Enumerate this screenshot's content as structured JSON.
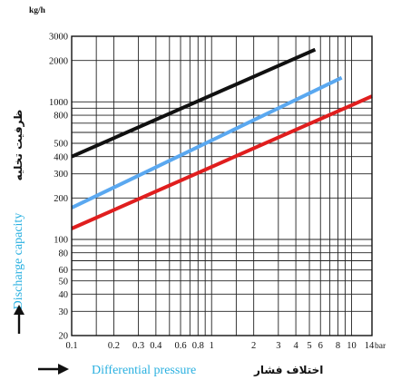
{
  "chart_data": {
    "type": "line",
    "title": "",
    "x_scale": "log",
    "y_scale": "log",
    "xlim": [
      0.1,
      14
    ],
    "ylim": [
      20,
      3000
    ],
    "x_unit": "bar",
    "y_unit": "kg/h",
    "x_tick_labels": [
      {
        "value": 0.1,
        "label": "0.1"
      },
      {
        "value": 0.2,
        "label": "0.2"
      },
      {
        "value": 0.3,
        "label": "0.3"
      },
      {
        "value": 0.4,
        "label": "0.4"
      },
      {
        "value": 0.6,
        "label": "0.6"
      },
      {
        "value": 0.8,
        "label": "0.8"
      },
      {
        "value": 1,
        "label": "1"
      },
      {
        "value": 2,
        "label": "2"
      },
      {
        "value": 3,
        "label": "3"
      },
      {
        "value": 4,
        "label": "4"
      },
      {
        "value": 5,
        "label": "5"
      },
      {
        "value": 6,
        "label": "6"
      },
      {
        "value": 8,
        "label": "8"
      },
      {
        "value": 10,
        "label": "10"
      },
      {
        "value": 14,
        "label": "14"
      }
    ],
    "y_tick_labels": [
      {
        "value": 3000,
        "label": "3000"
      },
      {
        "value": 2000,
        "label": "2000"
      },
      {
        "value": 1000,
        "label": "1000"
      },
      {
        "value": 800,
        "label": "800"
      },
      {
        "value": 500,
        "label": "500"
      },
      {
        "value": 400,
        "label": "400"
      },
      {
        "value": 300,
        "label": "300"
      },
      {
        "value": 200,
        "label": "200"
      },
      {
        "value": 100,
        "label": "100"
      },
      {
        "value": 80,
        "label": "80"
      },
      {
        "value": 60,
        "label": "60"
      },
      {
        "value": 50,
        "label": "50"
      },
      {
        "value": 40,
        "label": "40"
      },
      {
        "value": 30,
        "label": "30"
      },
      {
        "value": 20,
        "label": "20"
      }
    ],
    "x_grid": [
      0.1,
      0.15,
      0.2,
      0.3,
      0.4,
      0.5,
      0.6,
      0.7,
      0.8,
      0.9,
      1,
      1.5,
      2,
      3,
      4,
      5,
      6,
      7,
      8,
      9,
      10,
      14
    ],
    "y_grid": [
      20,
      30,
      40,
      50,
      60,
      70,
      80,
      90,
      100,
      200,
      300,
      400,
      500,
      600,
      700,
      800,
      900,
      1000,
      2000,
      3000
    ],
    "grid": true,
    "series": [
      {
        "color": "#111111",
        "x": [
          0.1,
          5.5
        ],
        "y": [
          400,
          2400
        ]
      },
      {
        "color": "#5aa8f0",
        "x": [
          0.1,
          8.5
        ],
        "y": [
          170,
          1500
        ]
      },
      {
        "color": "#e01e1e",
        "x": [
          0.1,
          14
        ],
        "y": [
          120,
          1100
        ]
      }
    ],
    "ylabel_en": "Discharge capacity",
    "ylabel_fa": "ظرفیت تخلیه",
    "xlabel_en": "Differential pressure",
    "xlabel_fa": "اختلاف فشار",
    "colors": {
      "english_label": "#2ab0e0"
    }
  }
}
